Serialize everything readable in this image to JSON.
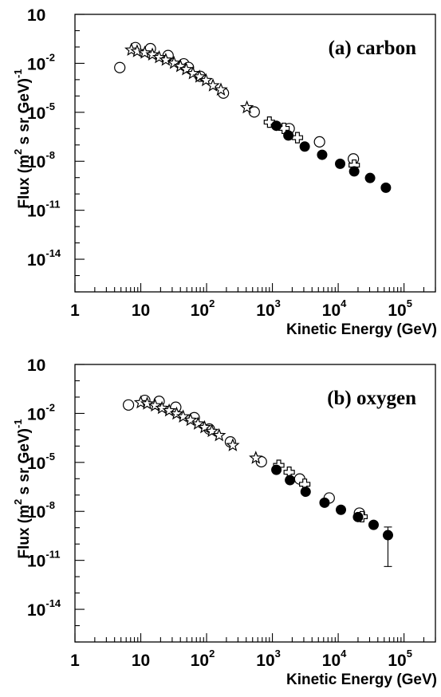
{
  "chart_data": [
    {
      "type": "scatter",
      "panel_label": "(a) carbon",
      "xlabel": "Kinetic Energy (GeV)",
      "ylabel_main": "Flux (m",
      "ylabel_sup2": "2",
      "ylabel_mid": " s sr GeV)",
      "ylabel_supneg": "-1",
      "xscale": "log",
      "yscale": "log",
      "xlim": [
        1,
        300000
      ],
      "ylim": [
        1e-16,
        10
      ],
      "x_ticks": [
        {
          "value": 1,
          "label": "1",
          "exp": ""
        },
        {
          "value": 10,
          "label": "10",
          "exp": ""
        },
        {
          "value": 100,
          "label": "10",
          "exp": "2"
        },
        {
          "value": 1000,
          "label": "10",
          "exp": "3"
        },
        {
          "value": 10000,
          "label": "10",
          "exp": "4"
        },
        {
          "value": 100000,
          "label": "10",
          "exp": "5"
        }
      ],
      "y_ticks": [
        {
          "value": 10,
          "label": "10",
          "exp": ""
        },
        {
          "value": 0.01,
          "label": "10",
          "exp": "-2"
        },
        {
          "value": 1e-05,
          "label": "10",
          "exp": "-5"
        },
        {
          "value": 1e-08,
          "label": "10",
          "exp": "-8"
        },
        {
          "value": 1e-11,
          "label": "10",
          "exp": "-11"
        },
        {
          "value": 1e-14,
          "label": "10",
          "exp": "-14"
        }
      ],
      "series": [
        {
          "marker": "circle-open",
          "points": [
            [
              4.8,
              0.0055
            ],
            [
              8.3,
              0.092
            ],
            [
              14,
              0.079
            ],
            [
              26,
              0.03
            ],
            [
              45,
              0.0093
            ],
            [
              53,
              0.0056
            ],
            [
              80,
              0.0016
            ],
            [
              180,
              0.00015
            ],
            [
              530,
              1.05e-05
            ],
            [
              1800,
              1e-06
            ],
            [
              5200,
              1.55e-07
            ],
            [
              17000,
              1.4e-08
            ]
          ]
        },
        {
          "marker": "star-open",
          "points": [
            [
              7.2,
              0.066
            ],
            [
              8.8,
              0.054
            ],
            [
              11.5,
              0.044
            ],
            [
              15,
              0.034
            ],
            [
              19,
              0.023
            ],
            [
              24,
              0.016
            ],
            [
              32,
              0.0104
            ],
            [
              40,
              0.0066
            ],
            [
              49,
              0.0042
            ],
            [
              62,
              0.0024
            ],
            [
              78,
              0.0015
            ],
            [
              98,
              0.0009
            ],
            [
              125,
              0.00043
            ],
            [
              165,
              0.00024
            ],
            [
              410,
              1.95e-05
            ]
          ]
        },
        {
          "marker": "cross-open",
          "points": [
            [
              900,
              2.5e-06
            ],
            [
              1500,
              1.04e-06
            ],
            [
              2400,
              2.8e-07
            ],
            [
              17500,
              5.8e-09
            ]
          ]
        },
        {
          "marker": "circle-filled",
          "points": [
            [
              1150,
              1.5e-06
            ],
            [
              1750,
              3.8e-07
            ],
            [
              3100,
              8e-08
            ],
            [
              5700,
              2.5e-08
            ],
            [
              10700,
              7e-09
            ],
            [
              17500,
              2.4e-09
            ],
            [
              30500,
              9.5e-10
            ],
            [
              53000,
              2.4e-10
            ]
          ]
        }
      ]
    },
    {
      "type": "scatter",
      "panel_label": "(b) oxygen",
      "xlabel": "Kinetic Energy (GeV)",
      "ylabel_main": "Flux (m",
      "ylabel_sup2": "2",
      "ylabel_mid": " s sr GeV)",
      "ylabel_supneg": "-1",
      "xscale": "log",
      "yscale": "log",
      "xlim": [
        1,
        300000
      ],
      "ylim": [
        1e-16,
        10
      ],
      "x_ticks": [
        {
          "value": 1,
          "label": "1",
          "exp": ""
        },
        {
          "value": 10,
          "label": "10",
          "exp": ""
        },
        {
          "value": 100,
          "label": "10",
          "exp": "2"
        },
        {
          "value": 1000,
          "label": "10",
          "exp": "3"
        },
        {
          "value": 10000,
          "label": "10",
          "exp": "4"
        },
        {
          "value": 100000,
          "label": "10",
          "exp": "5"
        }
      ],
      "y_ticks": [
        {
          "value": 10,
          "label": "10",
          "exp": ""
        },
        {
          "value": 0.01,
          "label": "10",
          "exp": "-2"
        },
        {
          "value": 1e-05,
          "label": "10",
          "exp": "-5"
        },
        {
          "value": 1e-08,
          "label": "10",
          "exp": "-8"
        },
        {
          "value": 1e-11,
          "label": "10",
          "exp": "-11"
        },
        {
          "value": 1e-14,
          "label": "10",
          "exp": "-14"
        }
      ],
      "series": [
        {
          "marker": "circle-open",
          "points": [
            [
              6.5,
              0.033
            ],
            [
              11.5,
              0.063
            ],
            [
              19,
              0.055
            ],
            [
              34,
              0.024
            ],
            [
              65,
              0.0055
            ],
            [
              110,
              0.0011
            ],
            [
              230,
              0.00018
            ],
            [
              680,
              1.1e-05
            ],
            [
              2600,
              9.6e-07
            ],
            [
              7300,
              6.6e-08
            ],
            [
              21000,
              7.8e-09
            ]
          ]
        },
        {
          "marker": "star-open",
          "points": [
            [
              10,
              0.046
            ],
            [
              12.5,
              0.039
            ],
            [
              16.5,
              0.03
            ],
            [
              21,
              0.021
            ],
            [
              27,
              0.0148
            ],
            [
              35,
              0.0095
            ],
            [
              44,
              0.0063
            ],
            [
              57,
              0.0039
            ],
            [
              74,
              0.0023
            ],
            [
              93,
              0.0014
            ],
            [
              120,
              0.00081
            ],
            [
              155,
              0.00045
            ],
            [
              250,
              0.00011
            ],
            [
              560,
              1.85e-05
            ]
          ]
        },
        {
          "marker": "cross-open",
          "points": [
            [
              1250,
              6.6e-06
            ],
            [
              1800,
              2.5e-06
            ],
            [
              3100,
              4.6e-07
            ],
            [
              23000,
              4.7e-09
            ]
          ]
        },
        {
          "marker": "circle-filled",
          "points": [
            [
              1150,
              3.5e-06
            ],
            [
              1850,
              8.2e-07
            ],
            [
              3200,
              1.6e-07
            ],
            [
              6200,
              3.4e-08
            ],
            [
              11000,
              1.25e-08
            ],
            [
              20000,
              4.5e-09
            ],
            [
              34500,
              1.5e-09
            ]
          ]
        },
        {
          "marker": "circle-filled-errorbar",
          "points": [
            [
              57000,
              3.5e-10
            ]
          ],
          "error": [
            [
              4.2e-12,
              1.1e-09
            ]
          ]
        }
      ]
    }
  ]
}
